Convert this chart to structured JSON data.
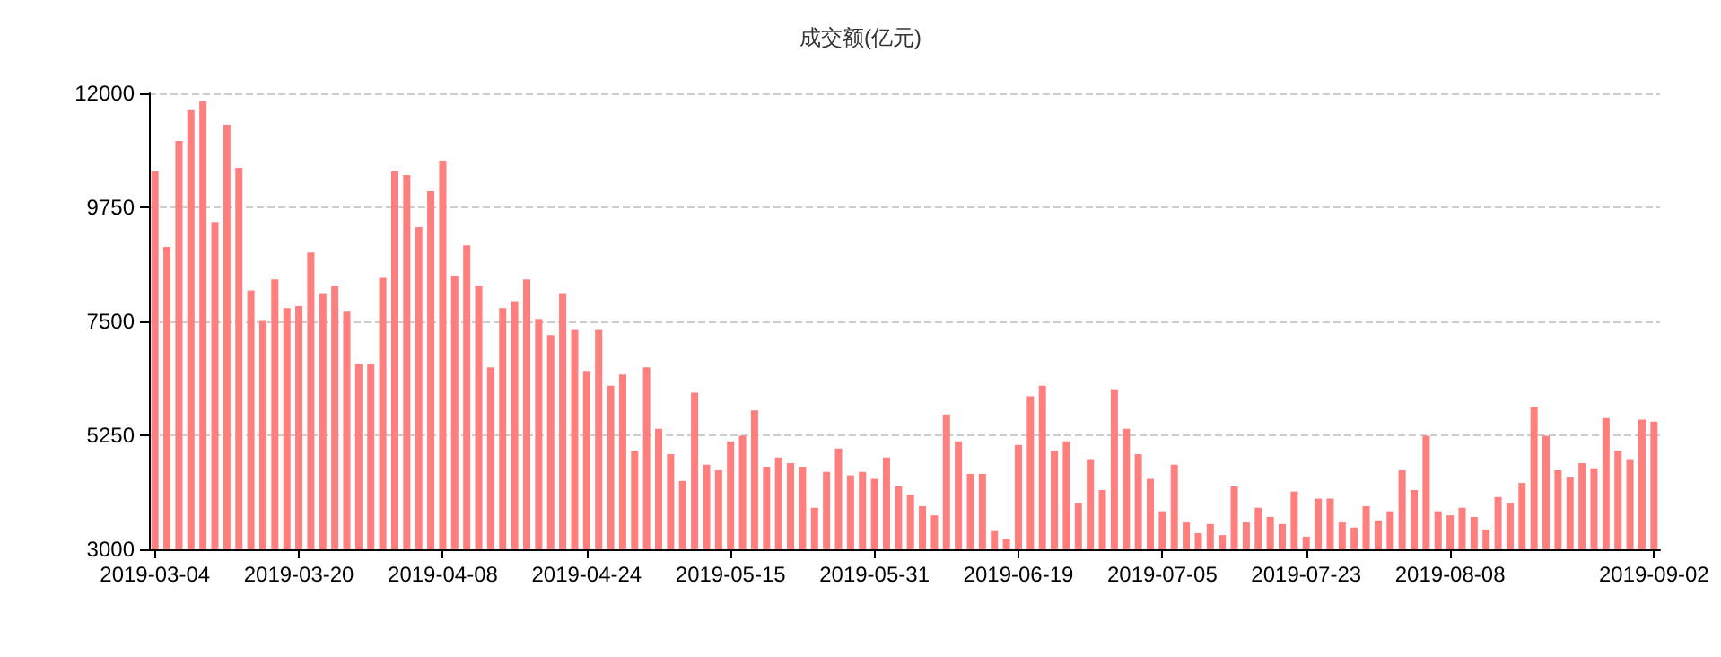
{
  "chart_data": {
    "type": "bar",
    "title": "成交额(亿元)",
    "categories": [
      "2019-03-04",
      null,
      null,
      null,
      null,
      null,
      null,
      null,
      null,
      null,
      null,
      null,
      "2019-03-20",
      null,
      null,
      null,
      null,
      null,
      null,
      null,
      null,
      null,
      null,
      null,
      "2019-04-08",
      null,
      null,
      null,
      null,
      null,
      null,
      null,
      null,
      null,
      null,
      null,
      "2019-04-24",
      null,
      null,
      null,
      null,
      null,
      null,
      null,
      null,
      null,
      null,
      null,
      "2019-05-15",
      null,
      null,
      null,
      null,
      null,
      null,
      null,
      null,
      null,
      null,
      null,
      "2019-05-31",
      null,
      null,
      null,
      null,
      null,
      null,
      null,
      null,
      null,
      null,
      null,
      "2019-06-19",
      null,
      null,
      null,
      null,
      null,
      null,
      null,
      null,
      null,
      null,
      null,
      "2019-07-05",
      null,
      null,
      null,
      null,
      null,
      null,
      null,
      null,
      null,
      null,
      null,
      "2019-07-23",
      null,
      null,
      null,
      null,
      null,
      null,
      null,
      null,
      null,
      null,
      null,
      "2019-08-08",
      null,
      null,
      null,
      null,
      null,
      null,
      null,
      null,
      null,
      null,
      null,
      null,
      null,
      null,
      null,
      null,
      "2019-09-02"
    ],
    "values": [
      10460,
      8970,
      11060,
      11670,
      11850,
      9460,
      11380,
      10530,
      8110,
      7510,
      8330,
      7760,
      7800,
      8860,
      8040,
      8190,
      7690,
      6660,
      6660,
      8360,
      10460,
      10390,
      9360,
      10070,
      10670,
      8400,
      9000,
      8190,
      6590,
      7760,
      7900,
      8330,
      7550,
      7230,
      8040,
      7330,
      6520,
      7330,
      6230,
      6450,
      4950,
      6590,
      5380,
      4880,
      4350,
      6090,
      4670,
      4560,
      5130,
      5240,
      5740,
      4630,
      4810,
      4700,
      4630,
      3820,
      4530,
      4990,
      4460,
      4530,
      4390,
      4810,
      4240,
      4070,
      3850,
      3670,
      5660,
      5130,
      4490,
      4490,
      3360,
      3210,
      5060,
      6020,
      6230,
      4950,
      5130,
      3920,
      4780,
      4170,
      6160,
      5380,
      4880,
      4390,
      3750,
      4670,
      3530,
      3320,
      3500,
      3280,
      4240,
      3530,
      3820,
      3640,
      3500,
      4140,
      3250,
      4000,
      4000,
      3530,
      3430,
      3850,
      3570,
      3750,
      4560,
      4170,
      5240,
      3750,
      3670,
      3820,
      3640,
      3390,
      4030,
      3920,
      4310,
      5810,
      5240,
      4560,
      4420,
      4700,
      4600,
      5590,
      4950,
      4780,
      5560,
      5520
    ],
    "color": "#ff7f7f",
    "ylim": [
      3000,
      12000
    ],
    "yticks": [
      3000,
      5250,
      7500,
      9750,
      12000
    ],
    "grid": "y"
  }
}
